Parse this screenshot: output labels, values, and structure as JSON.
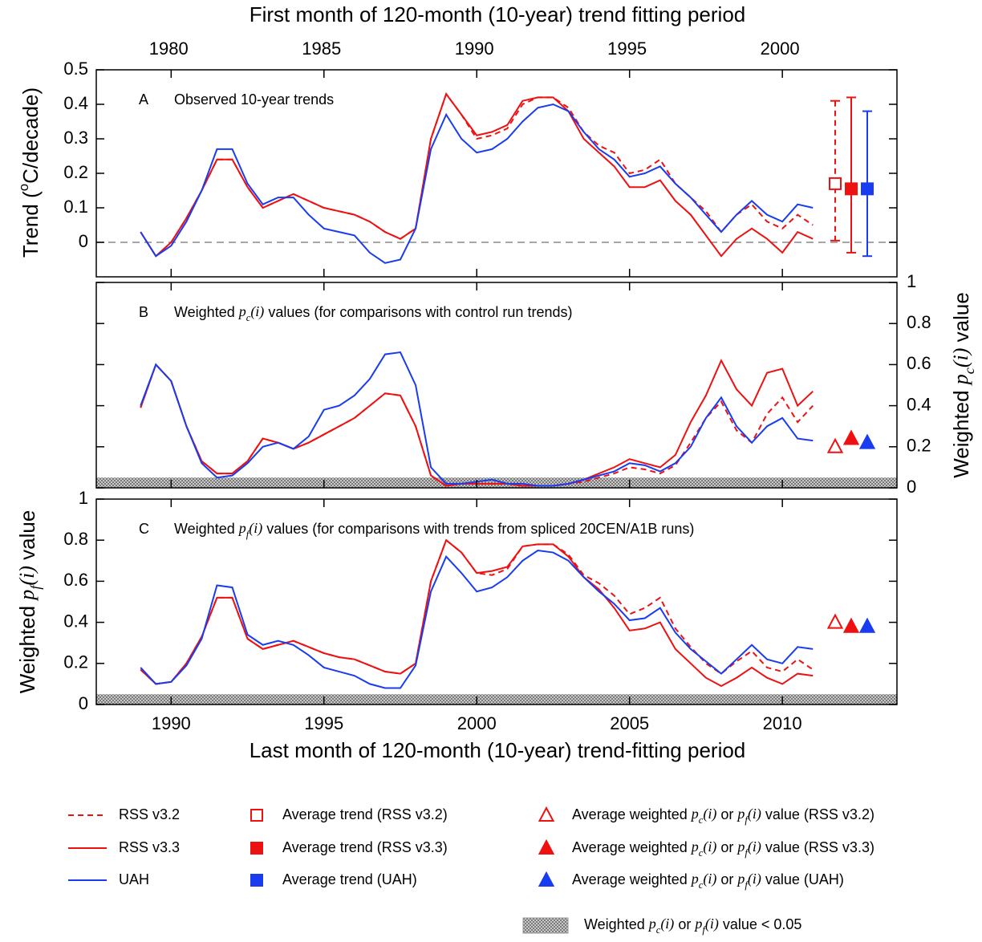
{
  "top_axis": {
    "label": "First month of 120-month (10-year) trend fitting period",
    "xlim": [
      1977.63,
      2003.83
    ],
    "xticks": [
      1980,
      1985,
      1990,
      1995,
      2000
    ]
  },
  "bottom_axis": {
    "label": "Last month of 120-month (10-year) trend-fitting period",
    "xlim": [
      1987.55,
      2013.75
    ],
    "xticks": [
      1990,
      1995,
      2000,
      2005,
      2010
    ]
  },
  "chart_data": [
    {
      "type": "line",
      "panel_label": "A",
      "title": "Observed 10-year trends",
      "ylabel": [
        {
          "text": "Trend ("
        },
        {
          "text": "o",
          "style": "sup"
        },
        {
          "text": "C/decade)"
        }
      ],
      "ytick_side": "left",
      "ylim": [
        -0.1,
        0.5
      ],
      "yticks": [
        0,
        0.1,
        0.2,
        0.3,
        0.4,
        0.5
      ],
      "reference_line": 0,
      "x": [
        1989,
        1989.5,
        1990,
        1990.5,
        1991,
        1991.5,
        1992,
        1992.5,
        1993,
        1993.5,
        1994,
        1994.5,
        1995,
        1995.5,
        1996,
        1996.5,
        1997,
        1997.5,
        1998,
        1998.5,
        1999,
        1999.5,
        2000,
        2000.5,
        2001,
        2001.5,
        2002,
        2002.5,
        2003,
        2003.5,
        2004,
        2004.5,
        2005,
        2005.5,
        2006,
        2006.5,
        2007,
        2007.5,
        2008,
        2008.5,
        2009,
        2009.5,
        2010,
        2010.5,
        2011
      ],
      "series": [
        {
          "name": "RSS v3.2",
          "color": "#ee1111",
          "dash": true,
          "values": [
            0.03,
            -0.04,
            0.0,
            0.07,
            0.15,
            0.24,
            0.24,
            0.16,
            0.1,
            0.12,
            0.14,
            0.12,
            0.1,
            0.09,
            0.08,
            0.06,
            0.03,
            0.01,
            0.04,
            0.3,
            0.43,
            0.37,
            0.3,
            0.31,
            0.33,
            0.4,
            0.42,
            0.42,
            0.39,
            0.32,
            0.28,
            0.26,
            0.2,
            0.21,
            0.24,
            0.17,
            0.13,
            0.09,
            0.03,
            0.08,
            0.11,
            0.06,
            0.04,
            0.08,
            0.05
          ]
        },
        {
          "name": "RSS v3.3",
          "color": "#ee1111",
          "dash": false,
          "values": [
            0.03,
            -0.04,
            0.0,
            0.07,
            0.15,
            0.24,
            0.24,
            0.16,
            0.1,
            0.12,
            0.14,
            0.12,
            0.1,
            0.09,
            0.08,
            0.06,
            0.03,
            0.01,
            0.04,
            0.3,
            0.43,
            0.37,
            0.31,
            0.32,
            0.34,
            0.41,
            0.42,
            0.42,
            0.38,
            0.3,
            0.26,
            0.22,
            0.16,
            0.16,
            0.18,
            0.12,
            0.08,
            0.02,
            -0.04,
            0.01,
            0.04,
            0.01,
            -0.03,
            0.03,
            0.01
          ]
        },
        {
          "name": "UAH",
          "color": "#1a3cf0",
          "dash": false,
          "values": [
            0.03,
            -0.04,
            -0.01,
            0.06,
            0.15,
            0.27,
            0.27,
            0.17,
            0.11,
            0.13,
            0.13,
            0.08,
            0.04,
            0.03,
            0.02,
            -0.03,
            -0.06,
            -0.05,
            0.04,
            0.27,
            0.37,
            0.3,
            0.26,
            0.27,
            0.3,
            0.35,
            0.39,
            0.4,
            0.38,
            0.32,
            0.27,
            0.24,
            0.19,
            0.2,
            0.22,
            0.17,
            0.13,
            0.08,
            0.03,
            0.08,
            0.12,
            0.08,
            0.06,
            0.11,
            0.1
          ]
        }
      ],
      "averages": [
        {
          "marker": "open-square",
          "color": "#ee1111",
          "dash": true,
          "value": 0.17,
          "low": 0.005,
          "high": 0.41
        },
        {
          "marker": "square",
          "color": "#ee1111",
          "dash": false,
          "value": 0.155,
          "low": -0.03,
          "high": 0.42
        },
        {
          "marker": "square",
          "color": "#1a3cf0",
          "dash": false,
          "value": 0.155,
          "low": -0.04,
          "high": 0.38
        }
      ]
    },
    {
      "type": "line",
      "panel_label": "B",
      "title": [
        {
          "text": "Weighted "
        },
        {
          "text": "p",
          "style": "italic"
        },
        {
          "text": "c",
          "style": "sub"
        },
        {
          "text": "(i)",
          "style": "italic"
        },
        {
          "text": " values (for comparisons with control run trends)"
        }
      ],
      "ylabel": [
        {
          "text": "Weighted "
        },
        {
          "text": "p",
          "style": "italic"
        },
        {
          "text": "c",
          "style": "sub"
        },
        {
          "text": "(i)",
          "style": "italic"
        },
        {
          "text": " value"
        }
      ],
      "ytick_side": "right",
      "ylim": [
        0,
        1
      ],
      "yticks": [
        0,
        0.2,
        0.4,
        0.6,
        0.8,
        1
      ],
      "shade_below": 0.05,
      "x": [
        1989,
        1989.5,
        1990,
        1990.5,
        1991,
        1991.5,
        1992,
        1992.5,
        1993,
        1993.5,
        1994,
        1994.5,
        1995,
        1995.5,
        1996,
        1996.5,
        1997,
        1997.5,
        1998,
        1998.5,
        1999,
        1999.5,
        2000,
        2000.5,
        2001,
        2001.5,
        2002,
        2002.5,
        2003,
        2003.5,
        2004,
        2004.5,
        2005,
        2005.5,
        2006,
        2006.5,
        2007,
        2007.5,
        2008,
        2008.5,
        2009,
        2009.5,
        2010,
        2010.5,
        2011
      ],
      "series": [
        {
          "name": "RSS v3.2",
          "color": "#ee1111",
          "dash": true,
          "values": [
            0.39,
            0.6,
            0.52,
            0.3,
            0.13,
            0.07,
            0.07,
            0.13,
            0.24,
            0.22,
            0.19,
            0.22,
            0.26,
            0.3,
            0.34,
            0.4,
            0.46,
            0.45,
            0.3,
            0.06,
            0.01,
            0.02,
            0.02,
            0.02,
            0.02,
            0.01,
            0.01,
            0.01,
            0.02,
            0.03,
            0.05,
            0.07,
            0.1,
            0.09,
            0.07,
            0.11,
            0.22,
            0.34,
            0.42,
            0.28,
            0.22,
            0.36,
            0.44,
            0.32,
            0.4
          ]
        },
        {
          "name": "RSS v3.3",
          "color": "#ee1111",
          "dash": false,
          "values": [
            0.39,
            0.6,
            0.52,
            0.3,
            0.13,
            0.07,
            0.07,
            0.13,
            0.24,
            0.22,
            0.19,
            0.22,
            0.26,
            0.3,
            0.34,
            0.4,
            0.46,
            0.45,
            0.3,
            0.06,
            0.01,
            0.02,
            0.02,
            0.02,
            0.02,
            0.01,
            0.01,
            0.01,
            0.02,
            0.04,
            0.07,
            0.1,
            0.14,
            0.12,
            0.1,
            0.16,
            0.32,
            0.45,
            0.62,
            0.48,
            0.4,
            0.56,
            0.58,
            0.4,
            0.47
          ]
        },
        {
          "name": "UAH",
          "color": "#1a3cf0",
          "dash": false,
          "values": [
            0.4,
            0.6,
            0.52,
            0.3,
            0.12,
            0.05,
            0.06,
            0.12,
            0.2,
            0.22,
            0.19,
            0.25,
            0.38,
            0.4,
            0.45,
            0.53,
            0.65,
            0.66,
            0.5,
            0.1,
            0.02,
            0.02,
            0.03,
            0.04,
            0.02,
            0.02,
            0.01,
            0.01,
            0.02,
            0.04,
            0.06,
            0.08,
            0.12,
            0.11,
            0.08,
            0.12,
            0.2,
            0.34,
            0.44,
            0.3,
            0.22,
            0.3,
            0.34,
            0.24,
            0.23
          ]
        }
      ],
      "averages": [
        {
          "marker": "open-triangle",
          "color": "#ee1111",
          "value": 0.2
        },
        {
          "marker": "triangle",
          "color": "#ee1111",
          "value": 0.24
        },
        {
          "marker": "triangle",
          "color": "#1a3cf0",
          "value": 0.22
        }
      ]
    },
    {
      "type": "line",
      "panel_label": "C",
      "title": [
        {
          "text": "Weighted "
        },
        {
          "text": "p",
          "style": "italic"
        },
        {
          "text": "f",
          "style": "sub"
        },
        {
          "text": "(i)",
          "style": "italic"
        },
        {
          "text": " values (for comparisons with trends from spliced 20CEN/A1B runs)"
        }
      ],
      "ylabel": [
        {
          "text": "Weighted "
        },
        {
          "text": "p",
          "style": "italic"
        },
        {
          "text": "f",
          "style": "sub"
        },
        {
          "text": "(i)",
          "style": "italic"
        },
        {
          "text": " value"
        }
      ],
      "ytick_side": "left",
      "ylim": [
        0,
        1
      ],
      "yticks": [
        0,
        0.2,
        0.4,
        0.6,
        0.8,
        1
      ],
      "shade_below": 0.05,
      "x": [
        1989,
        1989.5,
        1990,
        1990.5,
        1991,
        1991.5,
        1992,
        1992.5,
        1993,
        1993.5,
        1994,
        1994.5,
        1995,
        1995.5,
        1996,
        1996.5,
        1997,
        1997.5,
        1998,
        1998.5,
        1999,
        1999.5,
        2000,
        2000.5,
        2001,
        2001.5,
        2002,
        2002.5,
        2003,
        2003.5,
        2004,
        2004.5,
        2005,
        2005.5,
        2006,
        2006.5,
        2007,
        2007.5,
        2008,
        2008.5,
        2009,
        2009.5,
        2010,
        2010.5,
        2011
      ],
      "series": [
        {
          "name": "RSS v3.2",
          "color": "#ee1111",
          "dash": true,
          "values": [
            0.17,
            0.1,
            0.11,
            0.2,
            0.33,
            0.52,
            0.52,
            0.32,
            0.27,
            0.29,
            0.31,
            0.28,
            0.25,
            0.23,
            0.22,
            0.19,
            0.16,
            0.15,
            0.2,
            0.6,
            0.8,
            0.74,
            0.64,
            0.63,
            0.66,
            0.77,
            0.78,
            0.78,
            0.73,
            0.63,
            0.59,
            0.53,
            0.44,
            0.47,
            0.52,
            0.37,
            0.28,
            0.2,
            0.15,
            0.21,
            0.26,
            0.18,
            0.16,
            0.22,
            0.17
          ]
        },
        {
          "name": "RSS v3.3",
          "color": "#ee1111",
          "dash": false,
          "values": [
            0.17,
            0.1,
            0.11,
            0.2,
            0.33,
            0.52,
            0.52,
            0.32,
            0.27,
            0.29,
            0.31,
            0.28,
            0.25,
            0.23,
            0.22,
            0.19,
            0.16,
            0.15,
            0.2,
            0.6,
            0.8,
            0.74,
            0.64,
            0.65,
            0.67,
            0.77,
            0.78,
            0.78,
            0.72,
            0.62,
            0.56,
            0.47,
            0.36,
            0.37,
            0.4,
            0.27,
            0.2,
            0.13,
            0.09,
            0.13,
            0.18,
            0.13,
            0.1,
            0.15,
            0.14
          ]
        },
        {
          "name": "UAH",
          "color": "#1a3cf0",
          "dash": false,
          "values": [
            0.18,
            0.1,
            0.11,
            0.19,
            0.32,
            0.58,
            0.57,
            0.34,
            0.29,
            0.31,
            0.29,
            0.24,
            0.18,
            0.16,
            0.14,
            0.1,
            0.08,
            0.08,
            0.19,
            0.55,
            0.72,
            0.64,
            0.55,
            0.57,
            0.62,
            0.7,
            0.75,
            0.74,
            0.7,
            0.62,
            0.55,
            0.49,
            0.41,
            0.42,
            0.47,
            0.35,
            0.27,
            0.21,
            0.15,
            0.22,
            0.29,
            0.22,
            0.2,
            0.28,
            0.27
          ]
        }
      ],
      "averages": [
        {
          "marker": "open-triangle",
          "color": "#ee1111",
          "value": 0.4
        },
        {
          "marker": "triangle",
          "color": "#ee1111",
          "value": 0.38
        },
        {
          "marker": "triangle",
          "color": "#1a3cf0",
          "value": 0.38
        }
      ]
    }
  ],
  "legend": {
    "averages": [
      {
        "marker": "open-square",
        "color": "#ee1111",
        "text": "Average trend (RSS v3.2)"
      },
      {
        "marker": "square",
        "color": "#ee1111",
        "text": "Average trend (RSS v3.3)"
      },
      {
        "marker": "square",
        "color": "#1a3cf0",
        "text": "Average trend (UAH)"
      }
    ],
    "weighted": [
      {
        "marker": "open-triangle",
        "color": "#ee1111",
        "text": [
          {
            "text": "Average weighted "
          },
          {
            "text": "p",
            "style": "italic"
          },
          {
            "text": "c",
            "style": "sub"
          },
          {
            "text": "(i)",
            "style": "italic"
          },
          {
            "text": " or "
          },
          {
            "text": "p",
            "style": "italic"
          },
          {
            "text": "f",
            "style": "sub"
          },
          {
            "text": "(i)",
            "style": "italic"
          },
          {
            "text": " value (RSS v3.2)"
          }
        ]
      },
      {
        "marker": "triangle",
        "color": "#ee1111",
        "text": [
          {
            "text": "Average weighted "
          },
          {
            "text": "p",
            "style": "italic"
          },
          {
            "text": "c",
            "style": "sub"
          },
          {
            "text": "(i)",
            "style": "italic"
          },
          {
            "text": " or "
          },
          {
            "text": "p",
            "style": "italic"
          },
          {
            "text": "f",
            "style": "sub"
          },
          {
            "text": "(i)",
            "style": "italic"
          },
          {
            "text": " value (RSS v3.3)"
          }
        ]
      },
      {
        "marker": "triangle",
        "color": "#1a3cf0",
        "text": [
          {
            "text": "Average weighted "
          },
          {
            "text": "p",
            "style": "italic"
          },
          {
            "text": "c",
            "style": "sub"
          },
          {
            "text": "(i)",
            "style": "italic"
          },
          {
            "text": " or "
          },
          {
            "text": "p",
            "style": "italic"
          },
          {
            "text": "f",
            "style": "sub"
          },
          {
            "text": "(i)",
            "style": "italic"
          },
          {
            "text": " value (UAH)"
          }
        ]
      }
    ],
    "shading": [
      {
        "text": "Weighted "
      },
      {
        "text": "p",
        "style": "italic"
      },
      {
        "text": "c",
        "style": "sub"
      },
      {
        "text": "(i)",
        "style": "italic"
      },
      {
        "text": " or "
      },
      {
        "text": "p",
        "style": "italic"
      },
      {
        "text": "f",
        "style": "sub"
      },
      {
        "text": "(i)",
        "style": "italic"
      },
      {
        "text": " value < 0.05"
      }
    ]
  }
}
